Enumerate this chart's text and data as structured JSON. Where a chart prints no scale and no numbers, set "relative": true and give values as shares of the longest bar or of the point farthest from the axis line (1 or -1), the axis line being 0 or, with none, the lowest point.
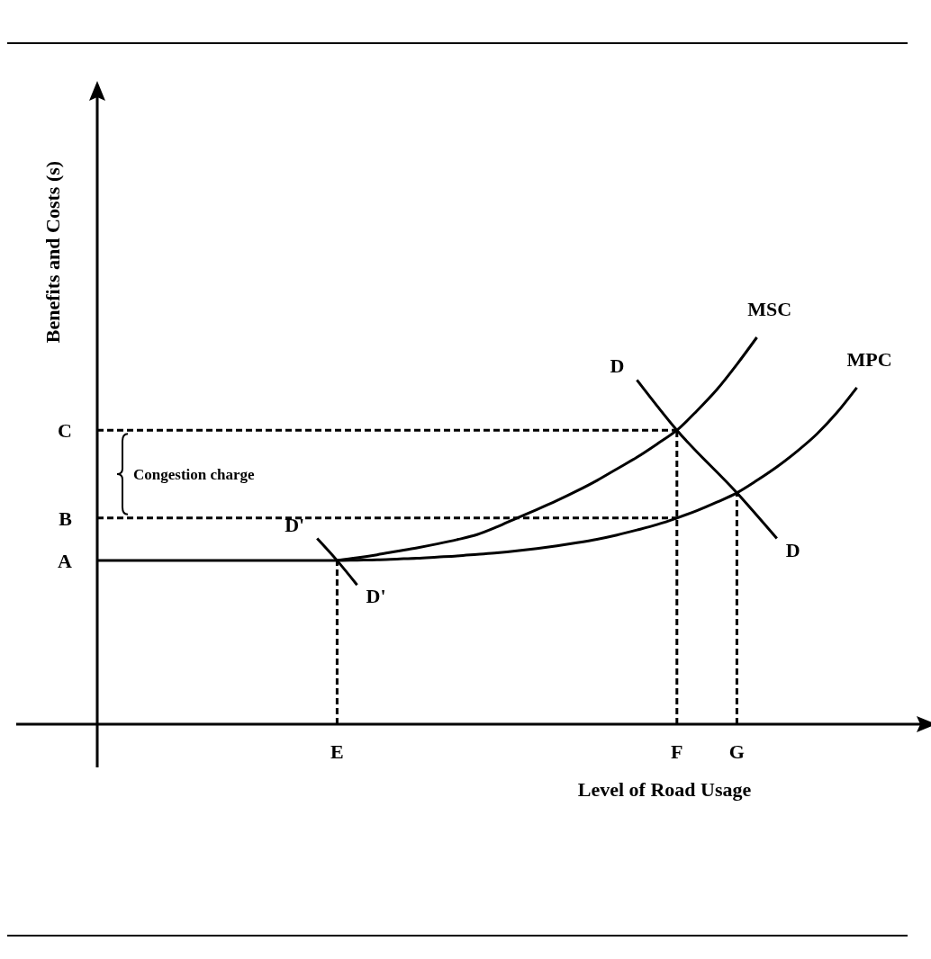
{
  "chart_data": {
    "type": "line",
    "relative": true,
    "xlabel": "Level of Road Usage",
    "ylabel": "Benefits and Costs (s)",
    "categories": [
      null,
      null,
      null,
      null,
      null,
      null,
      null,
      null,
      null,
      null,
      null,
      null,
      "E",
      null,
      null,
      null,
      null,
      null,
      null,
      null,
      null,
      null,
      null,
      null,
      null,
      null,
      null,
      null,
      null,
      "F",
      null,
      null,
      "G",
      null,
      null,
      null,
      null,
      null,
      null,
      null,
      null,
      null
    ],
    "annotations": [
      "A",
      "B",
      "C",
      "Congestion charge"
    ],
    "series": [
      {
        "name": "MSC",
        "color": "#000000",
        "values": [
          null,
          null,
          null,
          null,
          null,
          null,
          null,
          null,
          null,
          null,
          null,
          null,
          0.423,
          0.43,
          0.438,
          0.447,
          0.456,
          0.466,
          0.477,
          0.49,
          0.51,
          0.533,
          0.555,
          0.578,
          0.603,
          0.63,
          0.66,
          0.69,
          0.724,
          0.76,
          0.81,
          0.865,
          0.93,
          1.0,
          null,
          null,
          null,
          null,
          null,
          null,
          null,
          null
        ]
      },
      {
        "name": "MPC",
        "color": "#000000",
        "values": [
          0.423,
          0.423,
          0.423,
          0.423,
          0.423,
          0.423,
          0.423,
          0.423,
          0.423,
          0.423,
          0.423,
          0.423,
          0.423,
          0.424,
          0.425,
          0.427,
          0.429,
          0.432,
          0.435,
          0.439,
          0.443,
          0.448,
          0.454,
          0.461,
          0.469,
          0.478,
          0.489,
          0.502,
          0.516,
          0.533,
          0.552,
          0.574,
          0.598,
          0.63,
          0.665,
          0.705,
          0.75,
          0.805,
          0.87,
          null,
          null,
          null
        ]
      },
      {
        "name": "D",
        "color": "#000000",
        "values": [
          null,
          null,
          null,
          null,
          null,
          null,
          null,
          null,
          null,
          null,
          null,
          null,
          null,
          null,
          null,
          null,
          null,
          null,
          null,
          null,
          null,
          null,
          null,
          null,
          null,
          null,
          null,
          0.89,
          null,
          0.76,
          null,
          null,
          0.598,
          null,
          0.48,
          null,
          null,
          null,
          null,
          null,
          null,
          null
        ]
      },
      {
        "name": "D'",
        "color": "#000000",
        "values": [
          null,
          null,
          null,
          null,
          null,
          null,
          null,
          null,
          null,
          null,
          null,
          0.48,
          0.423,
          0.36,
          null,
          null,
          null,
          null,
          null,
          null,
          null,
          null,
          null,
          null,
          null,
          null,
          null,
          null,
          null,
          null,
          null,
          null,
          null,
          null,
          null,
          null,
          null,
          null,
          null,
          null,
          null,
          null
        ]
      },
      {
        "color": "#000000",
        "line_style": "dashed",
        "values": [
          0.76,
          0.76,
          0.76,
          0.76,
          0.76,
          0.76,
          0.76,
          0.76,
          0.76,
          0.76,
          0.76,
          0.76,
          0.76,
          0.76,
          0.76,
          0.76,
          0.76,
          0.76,
          0.76,
          0.76,
          0.76,
          0.76,
          0.76,
          0.76,
          0.76,
          0.76,
          0.76,
          0.76,
          0.76,
          0.76,
          null,
          null,
          null,
          null,
          null,
          null,
          null,
          null,
          null,
          null,
          null,
          null
        ]
      },
      {
        "color": "#000000",
        "line_style": "dashed",
        "values": [
          0.533,
          0.533,
          0.533,
          0.533,
          0.533,
          0.533,
          0.533,
          0.533,
          0.533,
          0.533,
          0.533,
          0.533,
          0.533,
          0.533,
          0.533,
          0.533,
          0.533,
          0.533,
          0.533,
          0.533,
          0.533,
          0.533,
          0.533,
          0.533,
          0.533,
          0.533,
          0.533,
          0.533,
          0.533,
          0.533,
          null,
          null,
          null,
          null,
          null,
          null,
          null,
          null,
          null,
          null,
          null,
          null
        ]
      },
      {
        "color": "#000000",
        "line_style": "dashed",
        "x": [
          "E",
          "E"
        ],
        "values": [
          0,
          0.423
        ]
      },
      {
        "color": "#000000",
        "line_style": "dashed",
        "x": [
          "F",
          "F"
        ],
        "values": [
          0,
          0.76
        ]
      },
      {
        "color": "#000000",
        "line_style": "dashed",
        "x": [
          "G",
          "G"
        ],
        "values": [
          0,
          0.598
        ]
      }
    ]
  }
}
